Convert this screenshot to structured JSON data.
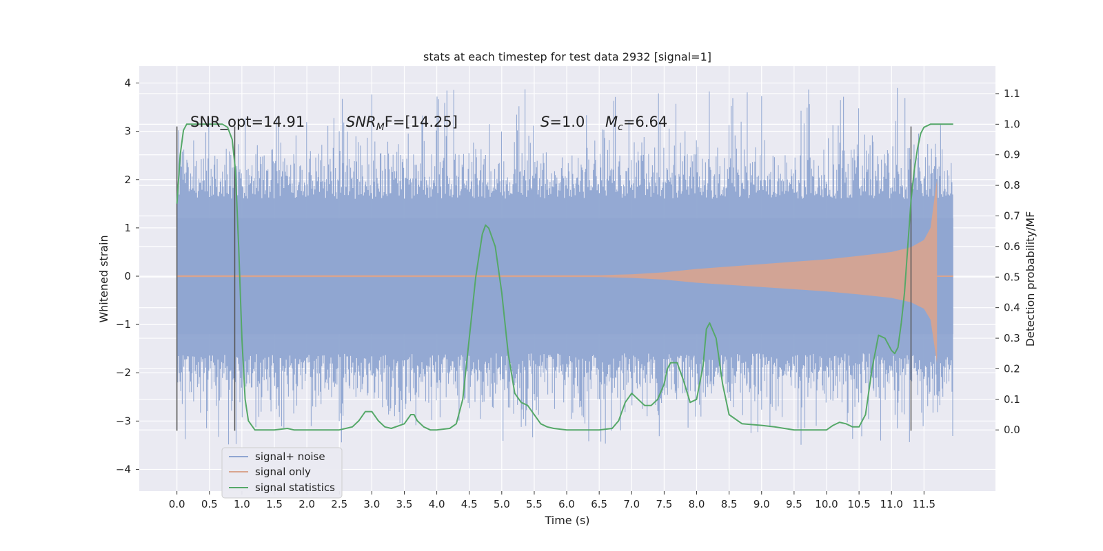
{
  "chart_data": {
    "type": "line",
    "title": "stats at each timestep for test data 2932 [signal=1]",
    "xlabel": "Time (s)",
    "ylabel_left": "Whitened strain",
    "ylabel_right": "Detection probability/MF",
    "xlim": [
      -0.58,
      12.6
    ],
    "ylim_left": [
      -4.45,
      4.35
    ],
    "ylim_right": [
      -0.2,
      1.19
    ],
    "xticks": [
      0.0,
      0.5,
      1.0,
      1.5,
      2.0,
      2.5,
      3.0,
      3.5,
      4.0,
      4.5,
      5.0,
      5.5,
      6.0,
      6.5,
      7.0,
      7.5,
      8.0,
      8.5,
      9.0,
      9.5,
      10.0,
      10.5,
      11.0,
      11.5
    ],
    "xtick_labels": [
      "0.0",
      "0.5",
      "1.0",
      "1.5",
      "2.0",
      "2.5",
      "3.0",
      "3.5",
      "4.0",
      "4.5",
      "5.0",
      "5.5",
      "6.0",
      "6.5",
      "7.0",
      "7.5",
      "8.0",
      "8.5",
      "9.0",
      "9.5",
      "10.0",
      "10.5",
      "11.0",
      "11.5"
    ],
    "yticks_left": [
      -4,
      -3,
      -2,
      -1,
      0,
      1,
      2,
      3,
      4
    ],
    "ytick_labels_left": [
      "−4",
      "−3",
      "−2",
      "−1",
      "0",
      "1",
      "2",
      "3",
      "4"
    ],
    "yticks_right": [
      0.0,
      0.1,
      0.2,
      0.3,
      0.4,
      0.5,
      0.6,
      0.7,
      0.8,
      0.9,
      1.0,
      1.1
    ],
    "ytick_labels_right": [
      "0.0",
      "0.1",
      "0.2",
      "0.3",
      "0.4",
      "0.5",
      "0.6",
      "0.7",
      "0.8",
      "0.9",
      "1.0",
      "1.1"
    ],
    "grid": true,
    "legend_position": "lower-left",
    "annotations": {
      "snr_opt": "SNR_opt=14.91",
      "snr_mf_base": "SNR",
      "snr_mf_sub": "M",
      "snr_mf_rest": "F=[14.25]",
      "s_sym": "S",
      "s_rest": "=1.0",
      "mc_sym": "M",
      "mc_sub": "c",
      "mc_rest": "=6.64"
    },
    "vertical_markers_x": [
      0.0,
      0.89,
      11.3
    ],
    "series": [
      {
        "name": "signal+ noise",
        "color": "#8fa5d1",
        "axis": "left",
        "description_range": [
          -3.5,
          4.0
        ],
        "t_range": [
          0.0,
          11.95
        ]
      },
      {
        "name": "signal only",
        "color": "#d9a48e",
        "axis": "left",
        "envelope": {
          "t": [
            0.0,
            6.5,
            7.0,
            7.5,
            8.0,
            8.5,
            9.0,
            9.5,
            10.0,
            10.5,
            11.0,
            11.3,
            11.5,
            11.6,
            11.7
          ],
          "amp": [
            0.02,
            0.02,
            0.04,
            0.08,
            0.15,
            0.2,
            0.25,
            0.3,
            0.35,
            0.42,
            0.5,
            0.6,
            0.75,
            1.0,
            2.0
          ]
        }
      },
      {
        "name": "signal statistics",
        "color": "#55a868",
        "axis": "right",
        "x": [
          0.0,
          0.05,
          0.1,
          0.15,
          0.2,
          0.3,
          0.5,
          0.7,
          0.78,
          0.85,
          0.9,
          0.95,
          1.0,
          1.05,
          1.1,
          1.2,
          1.5,
          1.7,
          1.8,
          2.0,
          2.5,
          2.7,
          2.8,
          2.9,
          3.0,
          3.1,
          3.2,
          3.3,
          3.5,
          3.6,
          3.65,
          3.7,
          3.8,
          3.9,
          4.0,
          4.2,
          4.3,
          4.4,
          4.5,
          4.6,
          4.7,
          4.75,
          4.8,
          4.9,
          5.0,
          5.1,
          5.2,
          5.3,
          5.4,
          5.5,
          5.6,
          5.7,
          5.8,
          6.0,
          6.5,
          6.7,
          6.8,
          6.9,
          7.0,
          7.1,
          7.2,
          7.3,
          7.4,
          7.5,
          7.55,
          7.6,
          7.7,
          7.8,
          7.9,
          8.0,
          8.1,
          8.15,
          8.2,
          8.3,
          8.4,
          8.5,
          8.7,
          9.0,
          9.2,
          9.5,
          10.0,
          10.1,
          10.2,
          10.3,
          10.4,
          10.5,
          10.6,
          10.7,
          10.8,
          10.9,
          11.0,
          11.05,
          11.1,
          11.15,
          11.2,
          11.3,
          11.35,
          11.4,
          11.45,
          11.5,
          11.6,
          11.7,
          11.8,
          11.95
        ],
        "y": [
          0.74,
          0.9,
          0.98,
          1.0,
          1.0,
          1.0,
          1.0,
          1.0,
          0.99,
          0.95,
          0.85,
          0.6,
          0.3,
          0.1,
          0.03,
          0.0,
          0.0,
          0.005,
          0.0,
          0.0,
          0.0,
          0.01,
          0.03,
          0.06,
          0.06,
          0.03,
          0.01,
          0.005,
          0.02,
          0.05,
          0.05,
          0.03,
          0.01,
          0.0,
          0.0,
          0.005,
          0.02,
          0.1,
          0.3,
          0.5,
          0.64,
          0.67,
          0.66,
          0.6,
          0.45,
          0.25,
          0.12,
          0.09,
          0.08,
          0.05,
          0.02,
          0.01,
          0.005,
          0.0,
          0.0,
          0.005,
          0.03,
          0.09,
          0.12,
          0.1,
          0.08,
          0.08,
          0.1,
          0.15,
          0.2,
          0.22,
          0.22,
          0.16,
          0.09,
          0.1,
          0.21,
          0.33,
          0.35,
          0.3,
          0.15,
          0.05,
          0.02,
          0.015,
          0.01,
          0.0,
          0.0,
          0.015,
          0.025,
          0.02,
          0.01,
          0.01,
          0.05,
          0.2,
          0.31,
          0.3,
          0.26,
          0.25,
          0.27,
          0.35,
          0.45,
          0.75,
          0.85,
          0.92,
          0.97,
          0.99,
          1.0,
          1.0,
          1.0,
          1.0
        ]
      }
    ]
  }
}
